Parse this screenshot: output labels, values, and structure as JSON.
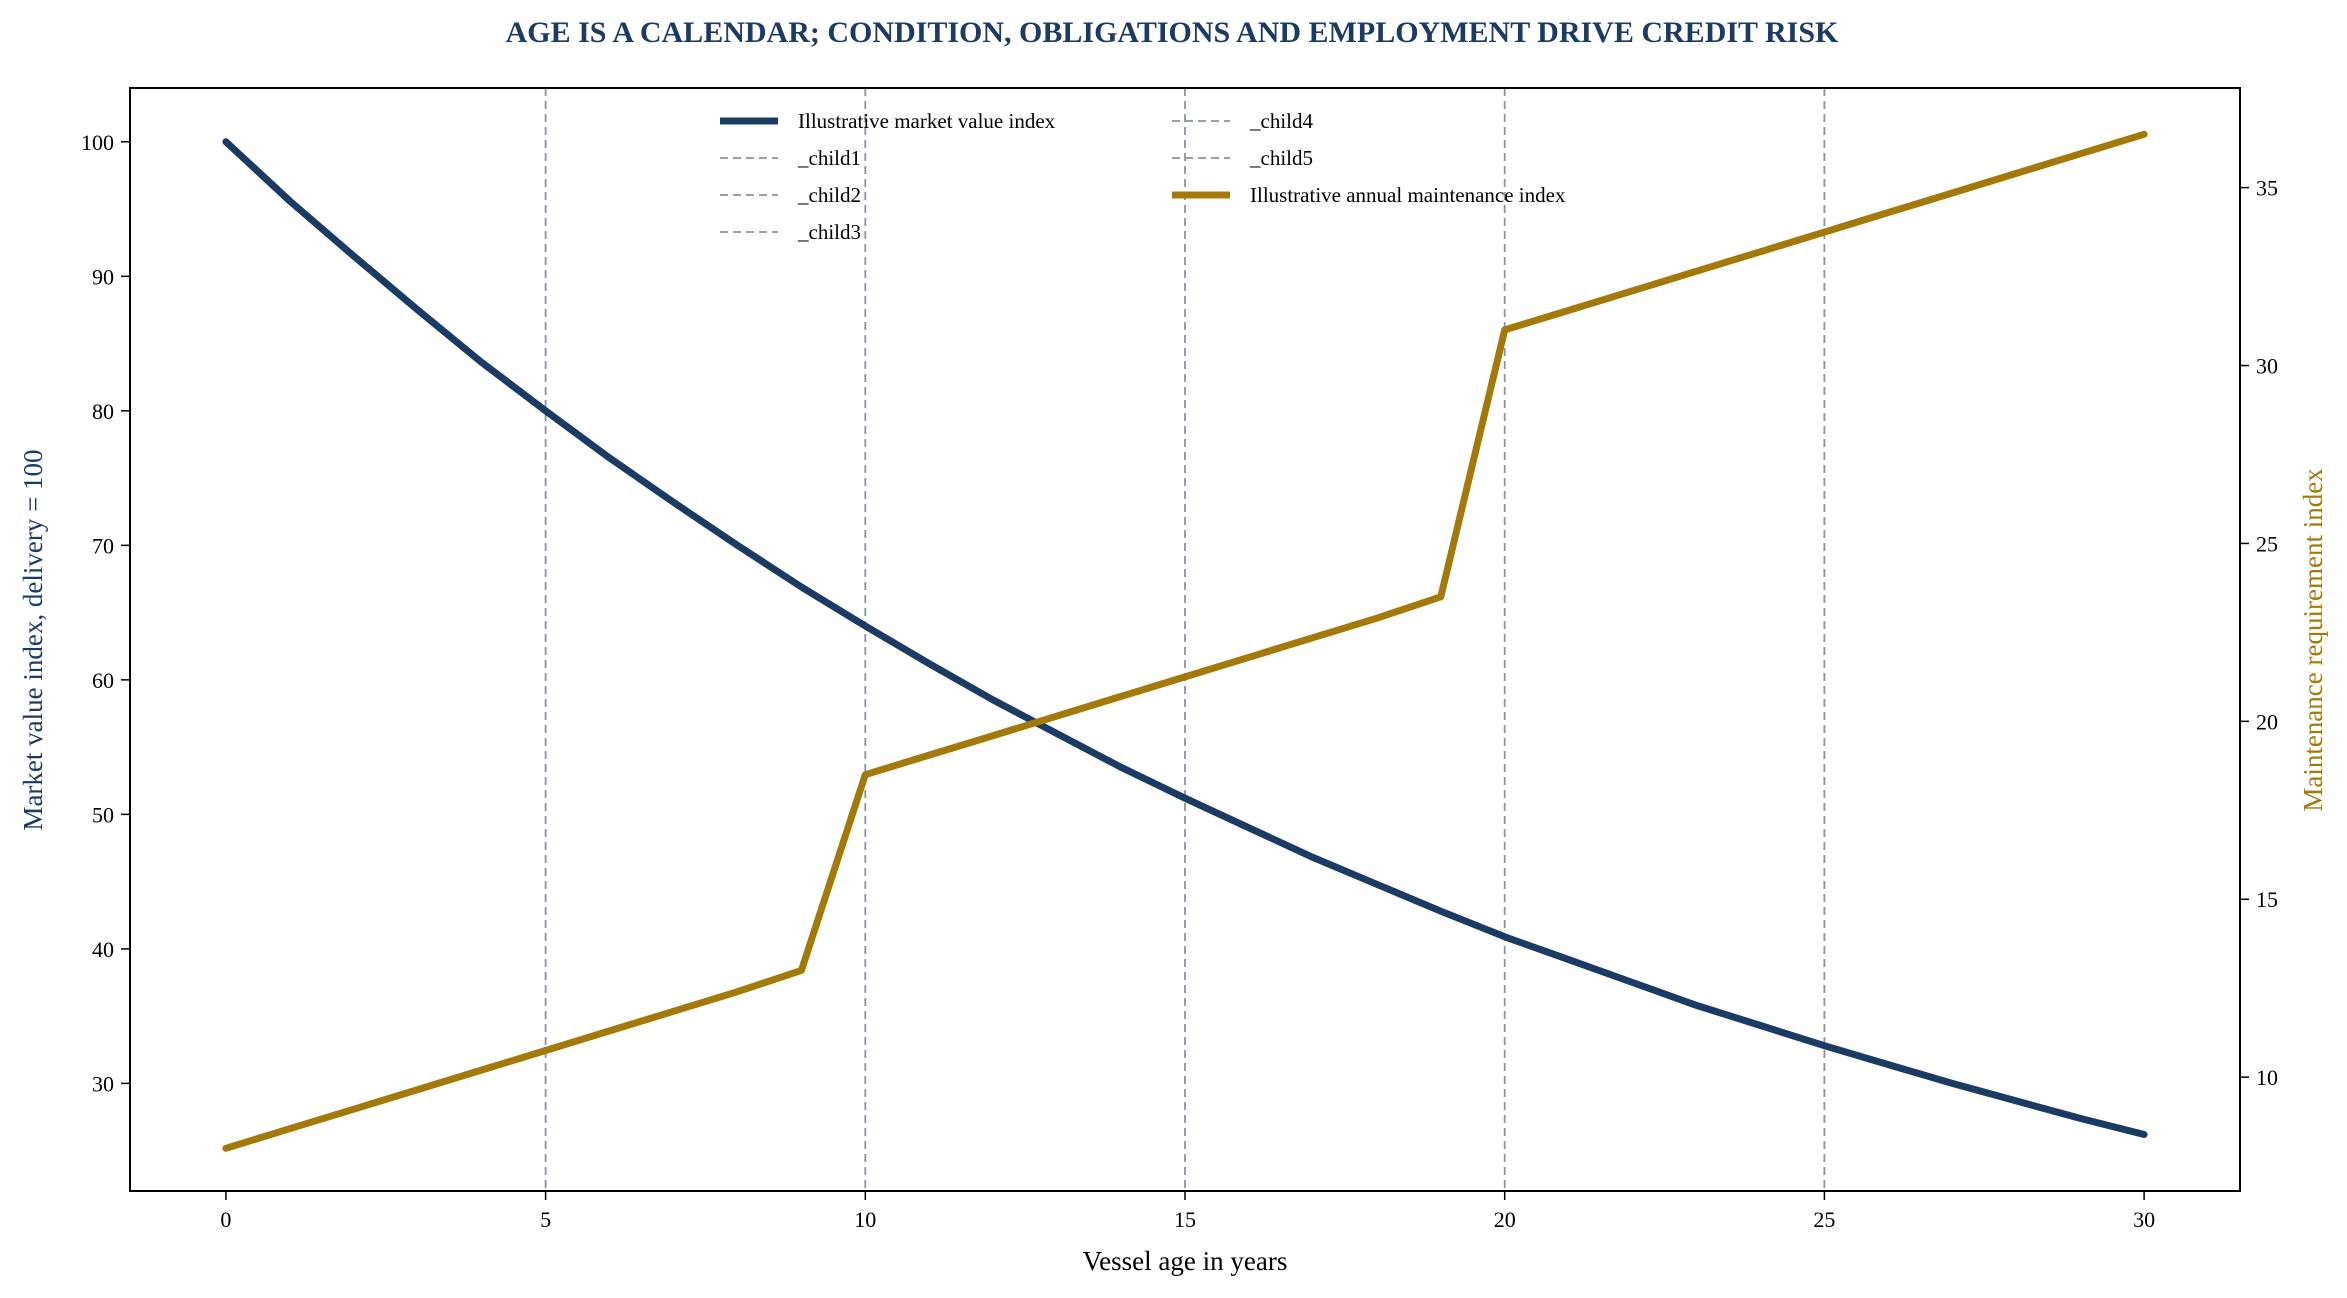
{
  "chart_data": {
    "type": "line",
    "title": "AGE IS A CALENDAR; CONDITION, OBLIGATIONS AND EMPLOYMENT DRIVE CREDIT RISK",
    "xlabel": "Vessel age in years",
    "ylabel_left": "Market value index, delivery = 100",
    "ylabel_right": "Maintenance requirement index",
    "xlim": [
      -1.5,
      31.5
    ],
    "ylim_left": [
      22,
      104
    ],
    "ylim_right": [
      6.8,
      37.8
    ],
    "x_ticks": [
      0,
      5,
      10,
      15,
      20,
      25,
      30
    ],
    "y_left_ticks": [
      30,
      40,
      50,
      60,
      70,
      80,
      90,
      100
    ],
    "y_right_ticks": [
      10,
      15,
      20,
      25,
      30,
      35
    ],
    "grid": false,
    "legend_placement": "top-center",
    "colors": {
      "market_value": "#1b3a64",
      "maintenance": "#a37a0a",
      "milestone": "#8a949e",
      "title": "#1b3a64"
    },
    "milestones": [
      {
        "x": 5,
        "label": "_child1"
      },
      {
        "x": 10,
        "label": "_child2"
      },
      {
        "x": 15,
        "label": "_child3"
      },
      {
        "x": 20,
        "label": "_child4"
      },
      {
        "x": 25,
        "label": "_child5"
      }
    ],
    "series": [
      {
        "name": "Illustrative market value index",
        "axis": "left",
        "x": [
          0,
          1,
          2,
          3,
          4,
          5,
          6,
          7,
          8,
          9,
          10,
          11,
          12,
          13,
          14,
          15,
          16,
          17,
          18,
          19,
          20,
          21,
          22,
          23,
          24,
          25,
          26,
          27,
          28,
          29,
          30
        ],
        "values": [
          100,
          95.6,
          91.5,
          87.5,
          83.6,
          80.0,
          76.5,
          73.2,
          70.0,
          66.9,
          64.0,
          61.2,
          58.5,
          56.0,
          53.5,
          51.2,
          49.0,
          46.8,
          44.8,
          42.8,
          40.9,
          39.2,
          37.5,
          35.8,
          34.3,
          32.8,
          31.4,
          30.0,
          28.7,
          27.4,
          26.2
        ]
      },
      {
        "name": "Illustrative annual maintenance index",
        "axis": "right",
        "x": [
          0,
          1,
          2,
          3,
          4,
          5,
          6,
          7,
          8,
          9,
          10,
          11,
          12,
          13,
          14,
          15,
          16,
          17,
          18,
          19,
          20,
          21,
          22,
          23,
          24,
          25,
          26,
          27,
          28,
          29,
          30
        ],
        "values": [
          8.0,
          8.55,
          9.1,
          9.65,
          10.2,
          10.75,
          11.3,
          11.85,
          12.4,
          13.0,
          18.5,
          19.05,
          19.6,
          20.15,
          20.7,
          21.25,
          21.8,
          22.35,
          22.9,
          23.5,
          31.0,
          31.55,
          32.1,
          32.65,
          33.2,
          33.75,
          34.3,
          34.85,
          35.4,
          35.95,
          36.5
        ]
      }
    ],
    "legend": [
      {
        "label": "Illustrative market value index",
        "style": "solid",
        "color_key": "market_value"
      },
      {
        "label": "_child1",
        "style": "dashed",
        "color_key": "milestone"
      },
      {
        "label": "_child2",
        "style": "dashed",
        "color_key": "milestone"
      },
      {
        "label": "_child3",
        "style": "dashed",
        "color_key": "milestone"
      },
      {
        "label": "_child4",
        "style": "dashed",
        "color_key": "milestone"
      },
      {
        "label": "_child5",
        "style": "dashed",
        "color_key": "milestone"
      },
      {
        "label": "Illustrative annual maintenance index",
        "style": "solid",
        "color_key": "maintenance"
      }
    ]
  }
}
